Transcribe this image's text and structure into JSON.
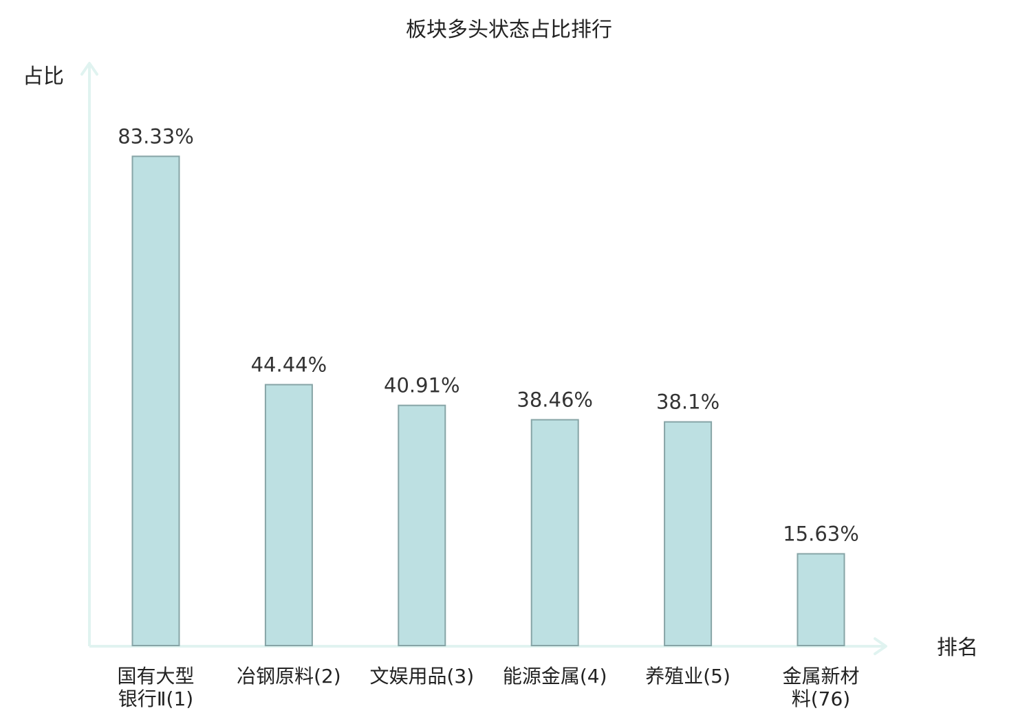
{
  "chart_data": {
    "type": "bar",
    "title": "板块多头状态占比排行",
    "xlabel": "排名",
    "ylabel": "占比",
    "ylim": [
      0,
      100
    ],
    "grid": false,
    "categories": [
      [
        "国有大型",
        "银行Ⅱ(1)"
      ],
      [
        "冶钢原料(2)"
      ],
      [
        "文娱用品(3)"
      ],
      [
        "能源金属(4)"
      ],
      [
        "养殖业(5)"
      ],
      [
        "金属新材",
        "料(76)"
      ]
    ],
    "values": [
      83.33,
      44.44,
      40.91,
      38.46,
      38.1,
      15.63
    ],
    "value_labels": [
      "83.33%",
      "44.44%",
      "40.91%",
      "38.46%",
      "38.1%",
      "15.63%"
    ],
    "highlight_index": 5
  },
  "colors": {
    "bar_fill": "#bde0e2",
    "bar_stroke": "#86a4a6",
    "axis": "#e0f3f0",
    "text": "#222222",
    "highlight_text": "#e0141c"
  }
}
